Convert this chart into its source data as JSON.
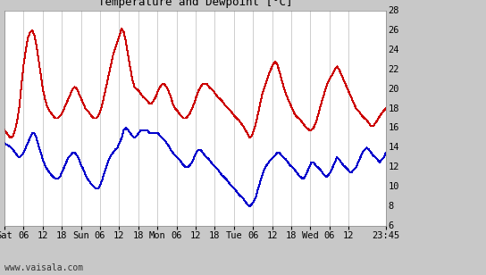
{
  "title": "Temperature and Dewpoint [°C]",
  "background_color": "#c8c8c8",
  "plot_bg_color": "#ffffff",
  "grid_color": "#bbbbbb",
  "line_color_temp": "#cc0000",
  "line_color_dew": "#0000cc",
  "ylim": [
    6,
    28
  ],
  "yticks": [
    6,
    8,
    10,
    12,
    14,
    16,
    18,
    20,
    22,
    24,
    26,
    28
  ],
  "watermark": "www.vaisala.com",
  "tick_hours": [
    0,
    6,
    12,
    18,
    24,
    30,
    36,
    42,
    48,
    54,
    60,
    66,
    72,
    78,
    84,
    90,
    96,
    102,
    108,
    119.75
  ],
  "tick_labels": [
    "Sat",
    "06",
    "12",
    "18",
    "Sun",
    "06",
    "12",
    "18",
    "Mon",
    "06",
    "12",
    "18",
    "Tue",
    "06",
    "12",
    "18",
    "Wed",
    "06",
    "12",
    "23:45"
  ],
  "total_hours": 119.75,
  "temp_data": [
    15.8,
    15.5,
    15.2,
    15.0,
    15.2,
    15.8,
    16.8,
    18.2,
    20.5,
    22.5,
    24.0,
    25.2,
    25.8,
    26.0,
    25.5,
    24.5,
    23.0,
    21.5,
    20.0,
    19.0,
    18.2,
    17.8,
    17.5,
    17.2,
    17.0,
    17.0,
    17.2,
    17.5,
    18.0,
    18.5,
    19.0,
    19.5,
    20.0,
    20.2,
    20.0,
    19.5,
    19.0,
    18.5,
    18.0,
    17.8,
    17.5,
    17.2,
    17.0,
    17.0,
    17.2,
    17.8,
    18.5,
    19.5,
    20.5,
    21.5,
    22.5,
    23.5,
    24.2,
    24.8,
    25.5,
    26.2,
    25.8,
    24.8,
    23.5,
    22.2,
    21.0,
    20.2,
    20.0,
    19.8,
    19.5,
    19.2,
    19.0,
    18.8,
    18.5,
    18.5,
    18.8,
    19.2,
    19.8,
    20.2,
    20.5,
    20.5,
    20.2,
    19.8,
    19.2,
    18.5,
    18.0,
    17.8,
    17.5,
    17.2,
    17.0,
    17.0,
    17.2,
    17.5,
    18.0,
    18.5,
    19.2,
    19.8,
    20.2,
    20.5,
    20.5,
    20.5,
    20.2,
    20.0,
    19.8,
    19.5,
    19.2,
    19.0,
    18.8,
    18.5,
    18.2,
    18.0,
    17.8,
    17.5,
    17.2,
    17.0,
    16.8,
    16.5,
    16.2,
    15.8,
    15.5,
    15.0,
    15.2,
    15.8,
    16.5,
    17.5,
    18.5,
    19.5,
    20.2,
    20.8,
    21.5,
    22.0,
    22.5,
    22.8,
    22.5,
    21.8,
    21.0,
    20.2,
    19.5,
    19.0,
    18.5,
    18.0,
    17.5,
    17.2,
    17.0,
    16.8,
    16.5,
    16.2,
    16.0,
    15.8,
    15.8,
    16.0,
    16.5,
    17.2,
    18.0,
    18.8,
    19.5,
    20.2,
    20.8,
    21.2,
    21.5,
    22.0,
    22.3,
    22.0,
    21.5,
    21.0,
    20.5,
    20.0,
    19.5,
    19.0,
    18.5,
    18.0,
    17.8,
    17.5,
    17.2,
    17.0,
    16.8,
    16.5,
    16.2,
    16.2,
    16.5,
    16.8,
    17.2,
    17.5,
    17.8,
    18.0
  ],
  "dew_data": [
    14.5,
    14.3,
    14.2,
    14.0,
    13.8,
    13.5,
    13.2,
    13.0,
    13.2,
    13.5,
    14.0,
    14.5,
    15.0,
    15.5,
    15.5,
    15.0,
    14.2,
    13.5,
    12.8,
    12.2,
    11.8,
    11.5,
    11.2,
    11.0,
    10.8,
    10.8,
    11.0,
    11.5,
    12.0,
    12.5,
    13.0,
    13.2,
    13.5,
    13.5,
    13.2,
    12.8,
    12.2,
    11.8,
    11.2,
    10.8,
    10.5,
    10.2,
    10.0,
    9.8,
    9.8,
    10.2,
    10.8,
    11.5,
    12.2,
    12.8,
    13.2,
    13.5,
    13.8,
    14.0,
    14.5,
    15.0,
    15.8,
    16.0,
    15.8,
    15.5,
    15.2,
    15.0,
    15.2,
    15.5,
    15.8,
    15.8,
    15.8,
    15.8,
    15.5,
    15.5,
    15.5,
    15.5,
    15.5,
    15.2,
    15.0,
    14.8,
    14.5,
    14.2,
    13.8,
    13.5,
    13.2,
    13.0,
    12.8,
    12.5,
    12.2,
    12.0,
    12.0,
    12.2,
    12.5,
    13.0,
    13.5,
    13.8,
    13.8,
    13.5,
    13.2,
    13.0,
    12.8,
    12.5,
    12.2,
    12.0,
    11.8,
    11.5,
    11.2,
    11.0,
    10.8,
    10.5,
    10.2,
    10.0,
    9.8,
    9.5,
    9.2,
    9.0,
    8.8,
    8.5,
    8.2,
    8.0,
    8.2,
    8.5,
    9.0,
    9.8,
    10.5,
    11.2,
    11.8,
    12.2,
    12.5,
    12.8,
    13.0,
    13.2,
    13.5,
    13.5,
    13.2,
    13.0,
    12.8,
    12.5,
    12.2,
    12.0,
    11.8,
    11.5,
    11.2,
    11.0,
    10.8,
    11.0,
    11.5,
    12.0,
    12.5,
    12.5,
    12.2,
    12.0,
    11.8,
    11.5,
    11.2,
    11.0,
    11.2,
    11.5,
    12.0,
    12.5,
    13.0,
    12.8,
    12.5,
    12.2,
    12.0,
    11.8,
    11.5,
    11.5,
    11.8,
    12.0,
    12.5,
    13.0,
    13.5,
    13.8,
    14.0,
    13.8,
    13.5,
    13.2,
    13.0,
    12.8,
    12.5,
    12.8,
    13.0,
    13.5
  ]
}
